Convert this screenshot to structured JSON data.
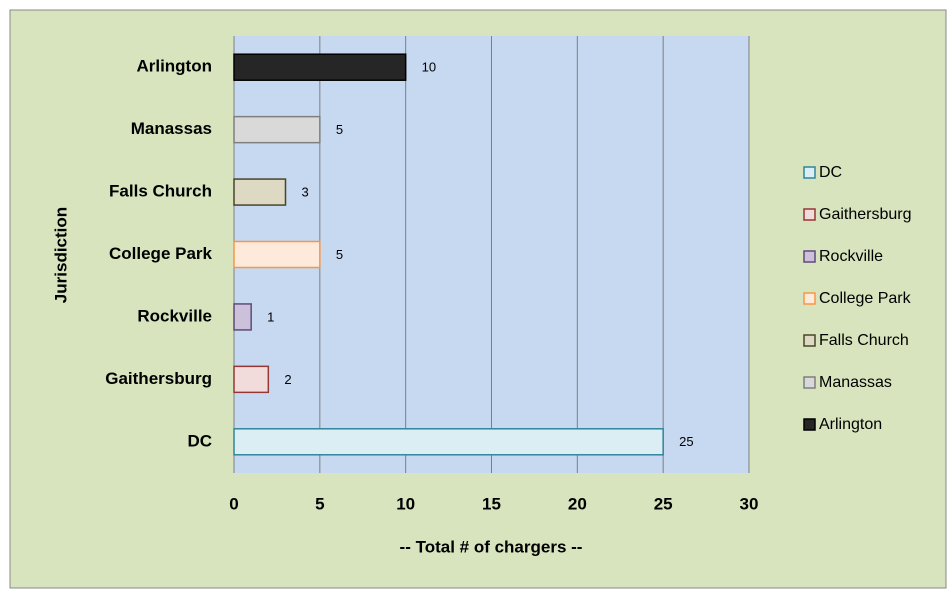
{
  "chart_data": {
    "type": "bar",
    "orientation": "horizontal",
    "y_label": "Jurisdiction",
    "x_label": "--  Total # of chargers --",
    "categories": [
      "DC",
      "Gaithersburg",
      "Rockville",
      "College Park",
      "Falls Church",
      "Manassas",
      "Arlington"
    ],
    "values": [
      25,
      2,
      1,
      5,
      3,
      5,
      10
    ],
    "colors": [
      "#dbeef4",
      "#f2dcdb",
      "#ccc1da",
      "#fdeada",
      "#ddd9c3",
      "#d9d9d9",
      "#262626"
    ],
    "edge_colors": [
      "#31859c",
      "#953735",
      "#604a7b",
      "#f79646",
      "#494429",
      "#7f7f7f",
      "#000000"
    ],
    "xlim": [
      0,
      30
    ],
    "xticks": [
      0,
      5,
      10,
      15,
      20,
      25,
      30
    ],
    "grid": true,
    "legend": "right"
  }
}
